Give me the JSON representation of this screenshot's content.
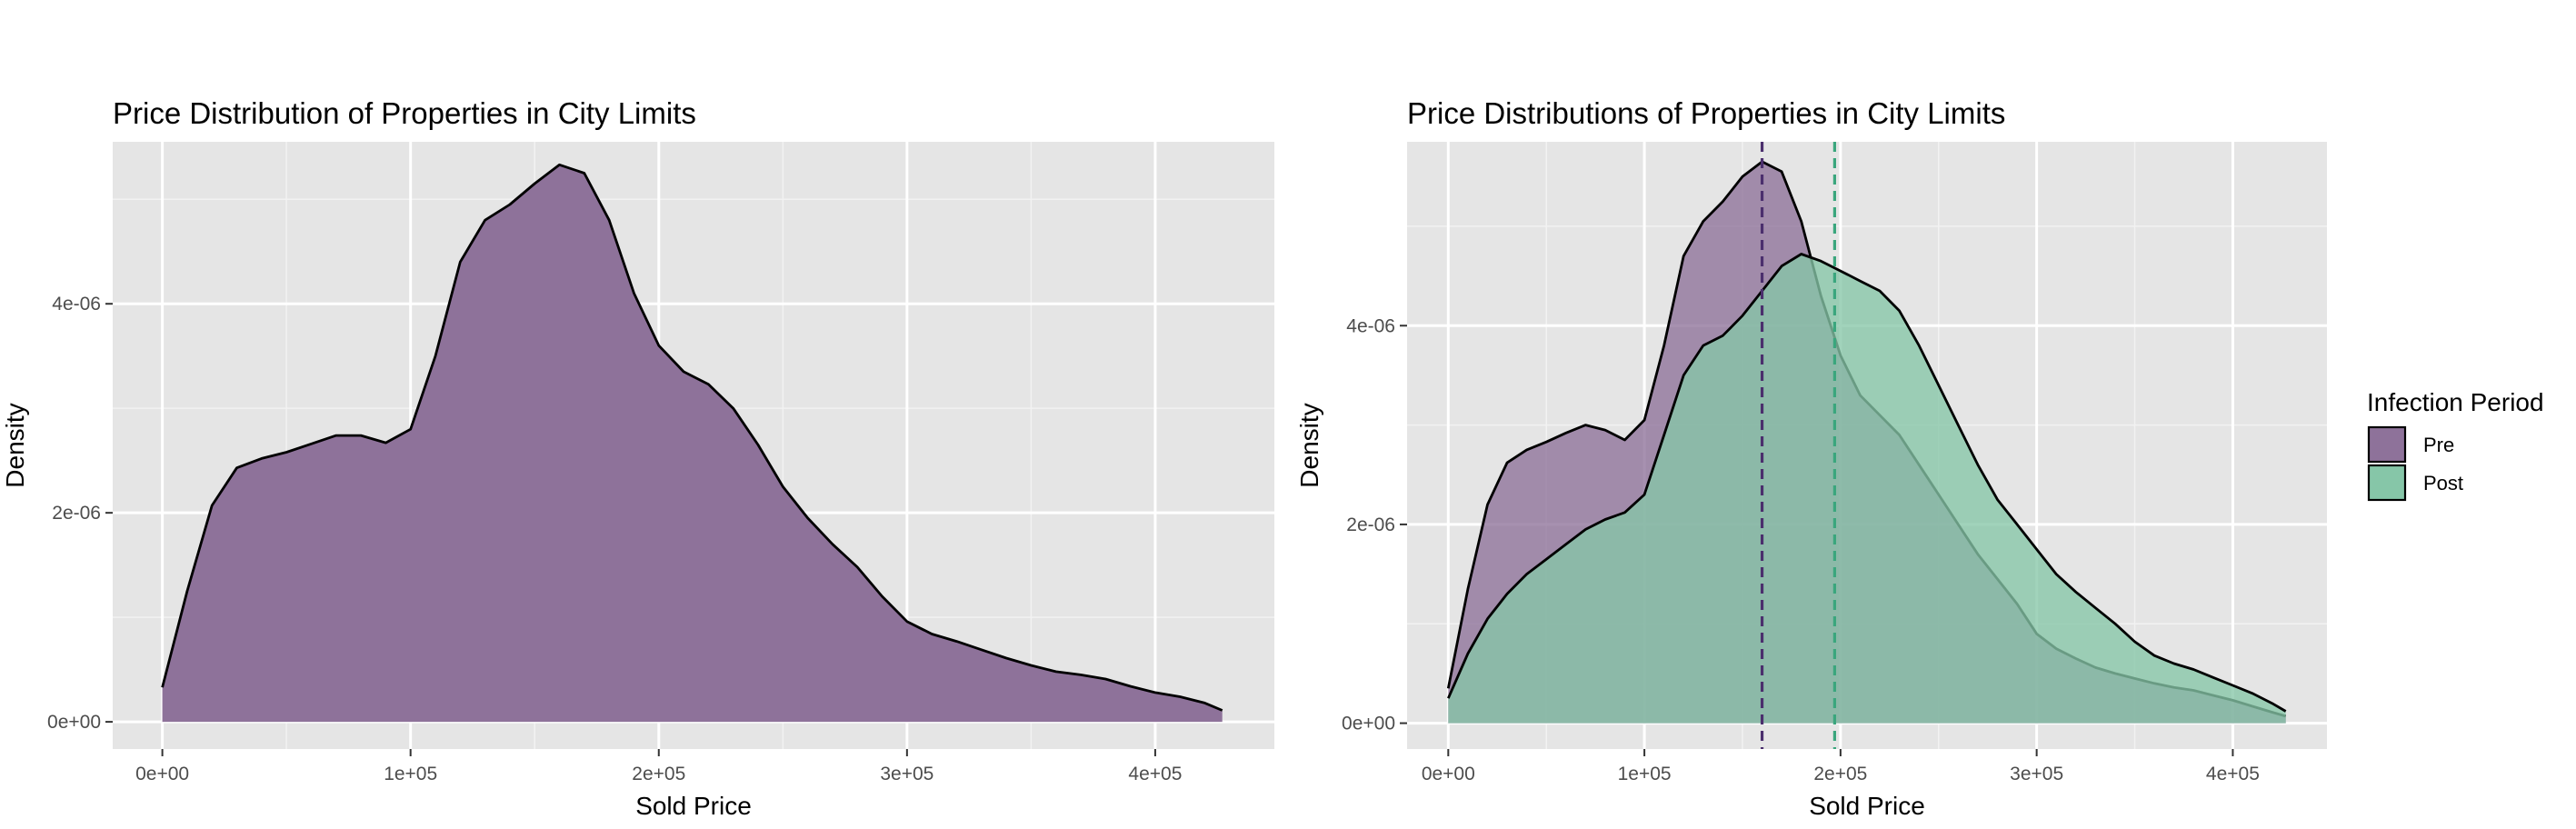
{
  "chart_data": [
    {
      "type": "area",
      "title": "Price Distribution of Properties in City Limits",
      "xlabel": "Sold Price",
      "ylabel": "Density",
      "xlim": [
        -20000,
        448000
      ],
      "ylim": [
        -2.6e-07,
        5.55e-06
      ],
      "x_ticks": [
        0,
        100000,
        200000,
        300000,
        400000
      ],
      "x_tick_labels": [
        "0e+00",
        "1e+05",
        "2e+05",
        "3e+05",
        "4e+05"
      ],
      "y_ticks": [
        0,
        2e-06,
        4e-06
      ],
      "y_tick_labels": [
        "0e+00",
        "2e-06",
        "4e-06"
      ],
      "grid": true,
      "series": [
        {
          "fill": "#8e729a",
          "x": [
            0,
            10000,
            20000,
            30000,
            40000,
            50000,
            60000,
            70000,
            80000,
            90000,
            100000,
            110000,
            120000,
            130000,
            140000,
            150000,
            160000,
            170000,
            180000,
            190000,
            200000,
            210000,
            220000,
            230000,
            240000,
            250000,
            260000,
            270000,
            280000,
            290000,
            300000,
            310000,
            320000,
            330000,
            340000,
            350000,
            360000,
            370000,
            380000,
            390000,
            400000,
            410000,
            420000,
            427000
          ],
          "y": [
            3.3e-07,
            1.25e-06,
            2.07e-06,
            2.43e-06,
            2.52e-06,
            2.58e-06,
            2.66e-06,
            2.74e-06,
            2.74e-06,
            2.67e-06,
            2.8e-06,
            3.5e-06,
            4.4e-06,
            4.8e-06,
            4.95e-06,
            5.15e-06,
            5.33e-06,
            5.25e-06,
            4.8e-06,
            4.1e-06,
            3.6e-06,
            3.35e-06,
            3.23e-06,
            3e-06,
            2.65e-06,
            2.25e-06,
            1.95e-06,
            1.7e-06,
            1.48e-06,
            1.2e-06,
            9.6e-07,
            8.4e-07,
            7.7e-07,
            6.9e-07,
            6.1e-07,
            5.4e-07,
            4.8e-07,
            4.5e-07,
            4.1e-07,
            3.4e-07,
            2.8e-07,
            2.4e-07,
            1.8e-07,
            1.1e-07
          ]
        }
      ]
    },
    {
      "type": "area",
      "title": "Price Distributions of Properties in City Limits",
      "xlabel": "Sold Price",
      "ylabel": "Density",
      "xlim": [
        -21000,
        448000
      ],
      "ylim": [
        -2.6e-07,
        5.85e-06
      ],
      "x_ticks": [
        0,
        100000,
        200000,
        300000,
        400000
      ],
      "x_tick_labels": [
        "0e+00",
        "1e+05",
        "2e+05",
        "3e+05",
        "4e+05"
      ],
      "y_ticks": [
        0,
        2e-06,
        4e-06
      ],
      "y_tick_labels": [
        "0e+00",
        "2e-06",
        "4e-06"
      ],
      "grid": true,
      "legend": {
        "title": "Infection Period",
        "position": "right"
      },
      "series": [
        {
          "name": "Pre",
          "fill": "#8e729a",
          "mean": 160000,
          "mean_line_color": "#4b2f6d",
          "x": [
            0,
            10000,
            20000,
            30000,
            40000,
            50000,
            60000,
            70000,
            80000,
            90000,
            100000,
            110000,
            120000,
            130000,
            140000,
            150000,
            160000,
            170000,
            180000,
            190000,
            200000,
            210000,
            220000,
            230000,
            240000,
            250000,
            260000,
            270000,
            280000,
            290000,
            300000,
            310000,
            320000,
            330000,
            340000,
            350000,
            360000,
            370000,
            380000,
            390000,
            400000,
            410000,
            420000,
            427000
          ],
          "y": [
            3.5e-07,
            1.35e-06,
            2.2e-06,
            2.62e-06,
            2.75e-06,
            2.83e-06,
            2.92e-06,
            3e-06,
            2.95e-06,
            2.85e-06,
            3.05e-06,
            3.8e-06,
            4.7e-06,
            5.05e-06,
            5.25e-06,
            5.5e-06,
            5.65e-06,
            5.55e-06,
            5.05e-06,
            4.3e-06,
            3.7e-06,
            3.3e-06,
            3.1e-06,
            2.9e-06,
            2.6e-06,
            2.3e-06,
            2e-06,
            1.7e-06,
            1.45e-06,
            1.2e-06,
            9e-07,
            7.5e-07,
            6.5e-07,
            5.6e-07,
            5e-07,
            4.5e-07,
            4e-07,
            3.6e-07,
            3.3e-07,
            2.8e-07,
            2.3e-07,
            1.7e-07,
            1.1e-07,
            7e-08
          ]
        },
        {
          "name": "Post",
          "fill": "#86c6a8",
          "mean": 197000,
          "mean_line_color": "#3aa67d",
          "x": [
            0,
            10000,
            20000,
            30000,
            40000,
            50000,
            60000,
            70000,
            80000,
            90000,
            100000,
            110000,
            120000,
            130000,
            140000,
            150000,
            160000,
            170000,
            180000,
            190000,
            200000,
            210000,
            220000,
            230000,
            240000,
            250000,
            260000,
            270000,
            280000,
            290000,
            300000,
            310000,
            320000,
            330000,
            340000,
            350000,
            360000,
            370000,
            380000,
            390000,
            400000,
            410000,
            420000,
            427000
          ],
          "y": [
            2.5e-07,
            7e-07,
            1.05e-06,
            1.3e-06,
            1.5e-06,
            1.65e-06,
            1.8e-06,
            1.95e-06,
            2.05e-06,
            2.12e-06,
            2.3e-06,
            2.9e-06,
            3.5e-06,
            3.8e-06,
            3.9e-06,
            4.1e-06,
            4.35e-06,
            4.6e-06,
            4.72e-06,
            4.65e-06,
            4.55e-06,
            4.45e-06,
            4.35e-06,
            4.15e-06,
            3.8e-06,
            3.4e-06,
            3e-06,
            2.6e-06,
            2.25e-06,
            2e-06,
            1.75e-06,
            1.5e-06,
            1.32e-06,
            1.16e-06,
            1e-06,
            8.2e-07,
            6.8e-07,
            6e-07,
            5.4e-07,
            4.6e-07,
            3.8e-07,
            3e-07,
            2e-07,
            1.2e-07
          ]
        }
      ]
    }
  ]
}
